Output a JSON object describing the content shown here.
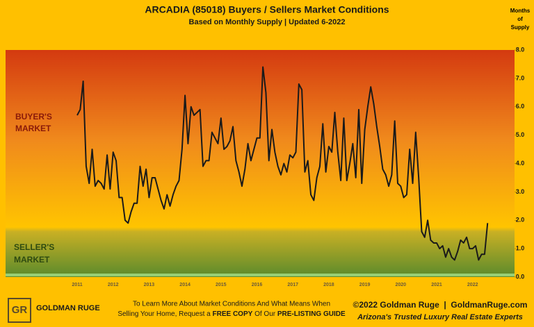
{
  "chart_data": {
    "type": "line",
    "title": "ARCADIA (85018) Buyers / Sellers Market Conditions",
    "subtitle": "Based on Monthly Supply | Updated 6-2022",
    "y_label": [
      "Months",
      "of",
      "Supply"
    ],
    "annotations": {
      "buyers": [
        "BUYER'S",
        "MARKET"
      ],
      "sellers": [
        "SELLER'S",
        "MARKET"
      ]
    },
    "categories": [
      "2011",
      null,
      null,
      null,
      null,
      null,
      null,
      null,
      null,
      null,
      null,
      null,
      "2012",
      null,
      null,
      null,
      null,
      null,
      null,
      null,
      null,
      null,
      null,
      null,
      "2013",
      null,
      null,
      null,
      null,
      null,
      null,
      null,
      null,
      null,
      null,
      null,
      "2014",
      null,
      null,
      null,
      null,
      null,
      null,
      null,
      null,
      null,
      null,
      null,
      "2015",
      null,
      null,
      null,
      null,
      null,
      null,
      null,
      null,
      null,
      null,
      null,
      "2016",
      null,
      null,
      null,
      null,
      null,
      null,
      null,
      null,
      null,
      null,
      null,
      "2017",
      null,
      null,
      null,
      null,
      null,
      null,
      null,
      null,
      null,
      null,
      null,
      "2018",
      null,
      null,
      null,
      null,
      null,
      null,
      null,
      null,
      null,
      null,
      null,
      "2019",
      null,
      null,
      null,
      null,
      null,
      null,
      null,
      null,
      null,
      null,
      null,
      "2020",
      null,
      null,
      null,
      null,
      null,
      null,
      null,
      null,
      null,
      null,
      null,
      "2021",
      null,
      null,
      null,
      null,
      null,
      null,
      null,
      null,
      null,
      null,
      null,
      "2022",
      null,
      null,
      null,
      null,
      null
    ],
    "values": [
      5.7,
      5.9,
      6.9,
      3.9,
      3.3,
      4.5,
      3.2,
      3.4,
      3.3,
      3.1,
      4.3,
      3.1,
      4.4,
      4.1,
      2.8,
      2.8,
      2.0,
      1.9,
      2.3,
      2.6,
      2.6,
      3.9,
      3.2,
      3.8,
      2.8,
      3.5,
      3.5,
      3.1,
      2.7,
      2.4,
      2.9,
      2.5,
      2.9,
      3.2,
      3.4,
      4.5,
      6.4,
      4.7,
      6.0,
      5.7,
      5.8,
      5.9,
      3.9,
      4.1,
      4.1,
      5.1,
      4.9,
      4.7,
      5.6,
      4.5,
      4.6,
      4.8,
      5.3,
      4.1,
      3.7,
      3.2,
      3.8,
      4.7,
      4.1,
      4.5,
      4.9,
      4.9,
      7.4,
      6.5,
      4.1,
      5.2,
      4.4,
      3.9,
      3.6,
      4.0,
      3.7,
      4.3,
      4.2,
      4.4,
      6.8,
      6.6,
      3.7,
      4.1,
      2.9,
      2.7,
      3.5,
      3.9,
      5.4,
      3.7,
      4.6,
      4.4,
      5.8,
      4.4,
      3.4,
      5.6,
      3.4,
      4.0,
      4.7,
      3.5,
      5.9,
      3.3,
      5.2,
      6.0,
      6.7,
      6.1,
      5.3,
      4.6,
      3.8,
      3.6,
      3.2,
      3.6,
      5.5,
      3.3,
      3.2,
      2.8,
      2.9,
      4.5,
      3.3,
      5.1,
      3.5,
      1.6,
      1.4,
      2.0,
      1.3,
      1.2,
      1.2,
      1.0,
      1.1,
      0.7,
      1.0,
      0.7,
      0.6,
      0.9,
      1.3,
      1.2,
      1.4,
      1.0,
      1.0,
      1.1,
      0.6,
      0.8,
      0.8,
      1.9
    ],
    "color": "#1a1a1a",
    "ylim": [
      0,
      8
    ],
    "yticks": [
      {
        "value": 0,
        "label": "0.0"
      },
      {
        "value": 1,
        "label": "1.0"
      },
      {
        "value": 2,
        "label": "2.0"
      },
      {
        "value": 3,
        "label": "3.0"
      },
      {
        "value": 4,
        "label": "4.0"
      },
      {
        "value": 5,
        "label": "5.0"
      },
      {
        "value": 6,
        "label": "6.0"
      },
      {
        "value": 7,
        "label": "7.0"
      },
      {
        "value": 8,
        "label": "8.0"
      }
    ],
    "grid": false
  },
  "logo": {
    "name": "GOLDMAN RUGE"
  },
  "footer": {
    "line1": "To Learn More About Market Conditions And What Means When",
    "line2": [
      "Selling Your Home, Request a ",
      "FREE COPY",
      " Of Our ",
      "PRE-LISTING GUIDE"
    ],
    "copyright": "©2022 Goldman Ruge  |  GoldmanRuge.com",
    "tagline": "Arizona's Trusted Luxury Real Estate Experts"
  }
}
